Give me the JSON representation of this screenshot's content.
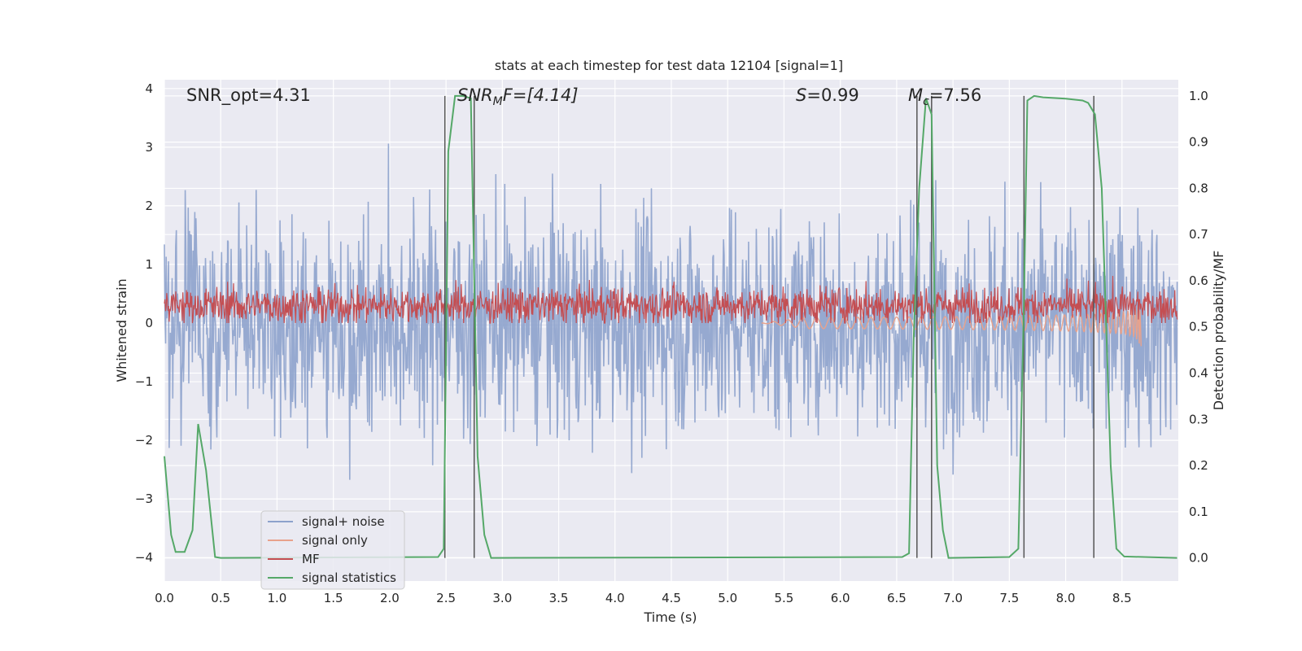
{
  "chart_data": {
    "type": "line",
    "title": "stats at each timestep for test data 12104 [signal=1]",
    "xlabel": "Time (s)",
    "ylabel_left": "Whitened strain",
    "ylabel_right": "Detection probability/MF",
    "xlim": [
      0,
      9.0
    ],
    "ylim_left": [
      -4.4,
      4.15
    ],
    "ylim_right": [
      -0.05,
      1.035
    ],
    "x_ticks": [
      "0.0",
      "0.5",
      "1.0",
      "1.5",
      "2.0",
      "2.5",
      "3.0",
      "3.5",
      "4.0",
      "4.5",
      "5.0",
      "5.5",
      "6.0",
      "6.5",
      "7.0",
      "7.5",
      "8.0",
      "8.5"
    ],
    "y_ticks_left": [
      "4",
      "3",
      "2",
      "1",
      "0",
      "−1",
      "−2",
      "−3",
      "−4"
    ],
    "y_ticks_right": [
      "1.0",
      "0.9",
      "0.8",
      "0.7",
      "0.6",
      "0.5",
      "0.4",
      "0.3",
      "0.2",
      "0.1",
      "0.0"
    ],
    "grid": true,
    "legend_position": "lower-left",
    "annotations": {
      "snr_opt": "SNR_opt=4.31",
      "snr_mf_var": "SNR",
      "snr_mf_sub": "M",
      "snr_mf_rest": "F=[4.14]",
      "s_var": "S",
      "s_rest": "=0.99",
      "mc_var": "M",
      "mc_sub": "c",
      "mc_rest": "=7.56"
    },
    "series": [
      {
        "name": "signal+ noise",
        "color": "#8da2cc",
        "note": "whitened strain, noise dominated, spans approx -4 to 4"
      },
      {
        "name": "signal only",
        "color": "#e8a28c",
        "note": "chirp grows from ~5.5 s to merger at ~8.67 s, peak amplitude ~0.5"
      },
      {
        "name": "MF",
        "color": "#c44e52",
        "note": "matched filter output between ~0.0 and ~0.9 (left axis units)"
      },
      {
        "name": "signal statistics",
        "color": "#55a868",
        "x": [
          0.0,
          0.06,
          0.1,
          0.18,
          0.25,
          0.3,
          0.37,
          0.45,
          0.5,
          2.43,
          2.48,
          2.52,
          2.58,
          2.65,
          2.72,
          2.78,
          2.84,
          2.9,
          6.55,
          6.61,
          6.65,
          6.7,
          6.76,
          6.81,
          6.86,
          6.91,
          6.96,
          7.5,
          7.58,
          7.63,
          7.66,
          7.72,
          7.8,
          8.0,
          8.15,
          8.2,
          8.26,
          8.32,
          8.4,
          8.45,
          8.52,
          8.99
        ],
        "y": [
          0.22,
          0.05,
          0.013,
          0.013,
          0.06,
          0.29,
          0.19,
          0.002,
          0.0,
          0.002,
          0.02,
          0.88,
          1.0,
          1.0,
          0.995,
          0.22,
          0.05,
          0.0,
          0.002,
          0.01,
          0.47,
          0.8,
          0.995,
          0.96,
          0.2,
          0.06,
          0.0,
          0.002,
          0.02,
          0.55,
          0.99,
          1.0,
          0.997,
          0.994,
          0.99,
          0.985,
          0.96,
          0.8,
          0.2,
          0.02,
          0.003,
          0.0
        ]
      }
    ],
    "vertical_markers_x": [
      2.49,
      2.75,
      6.68,
      6.81,
      7.63,
      8.25
    ]
  }
}
